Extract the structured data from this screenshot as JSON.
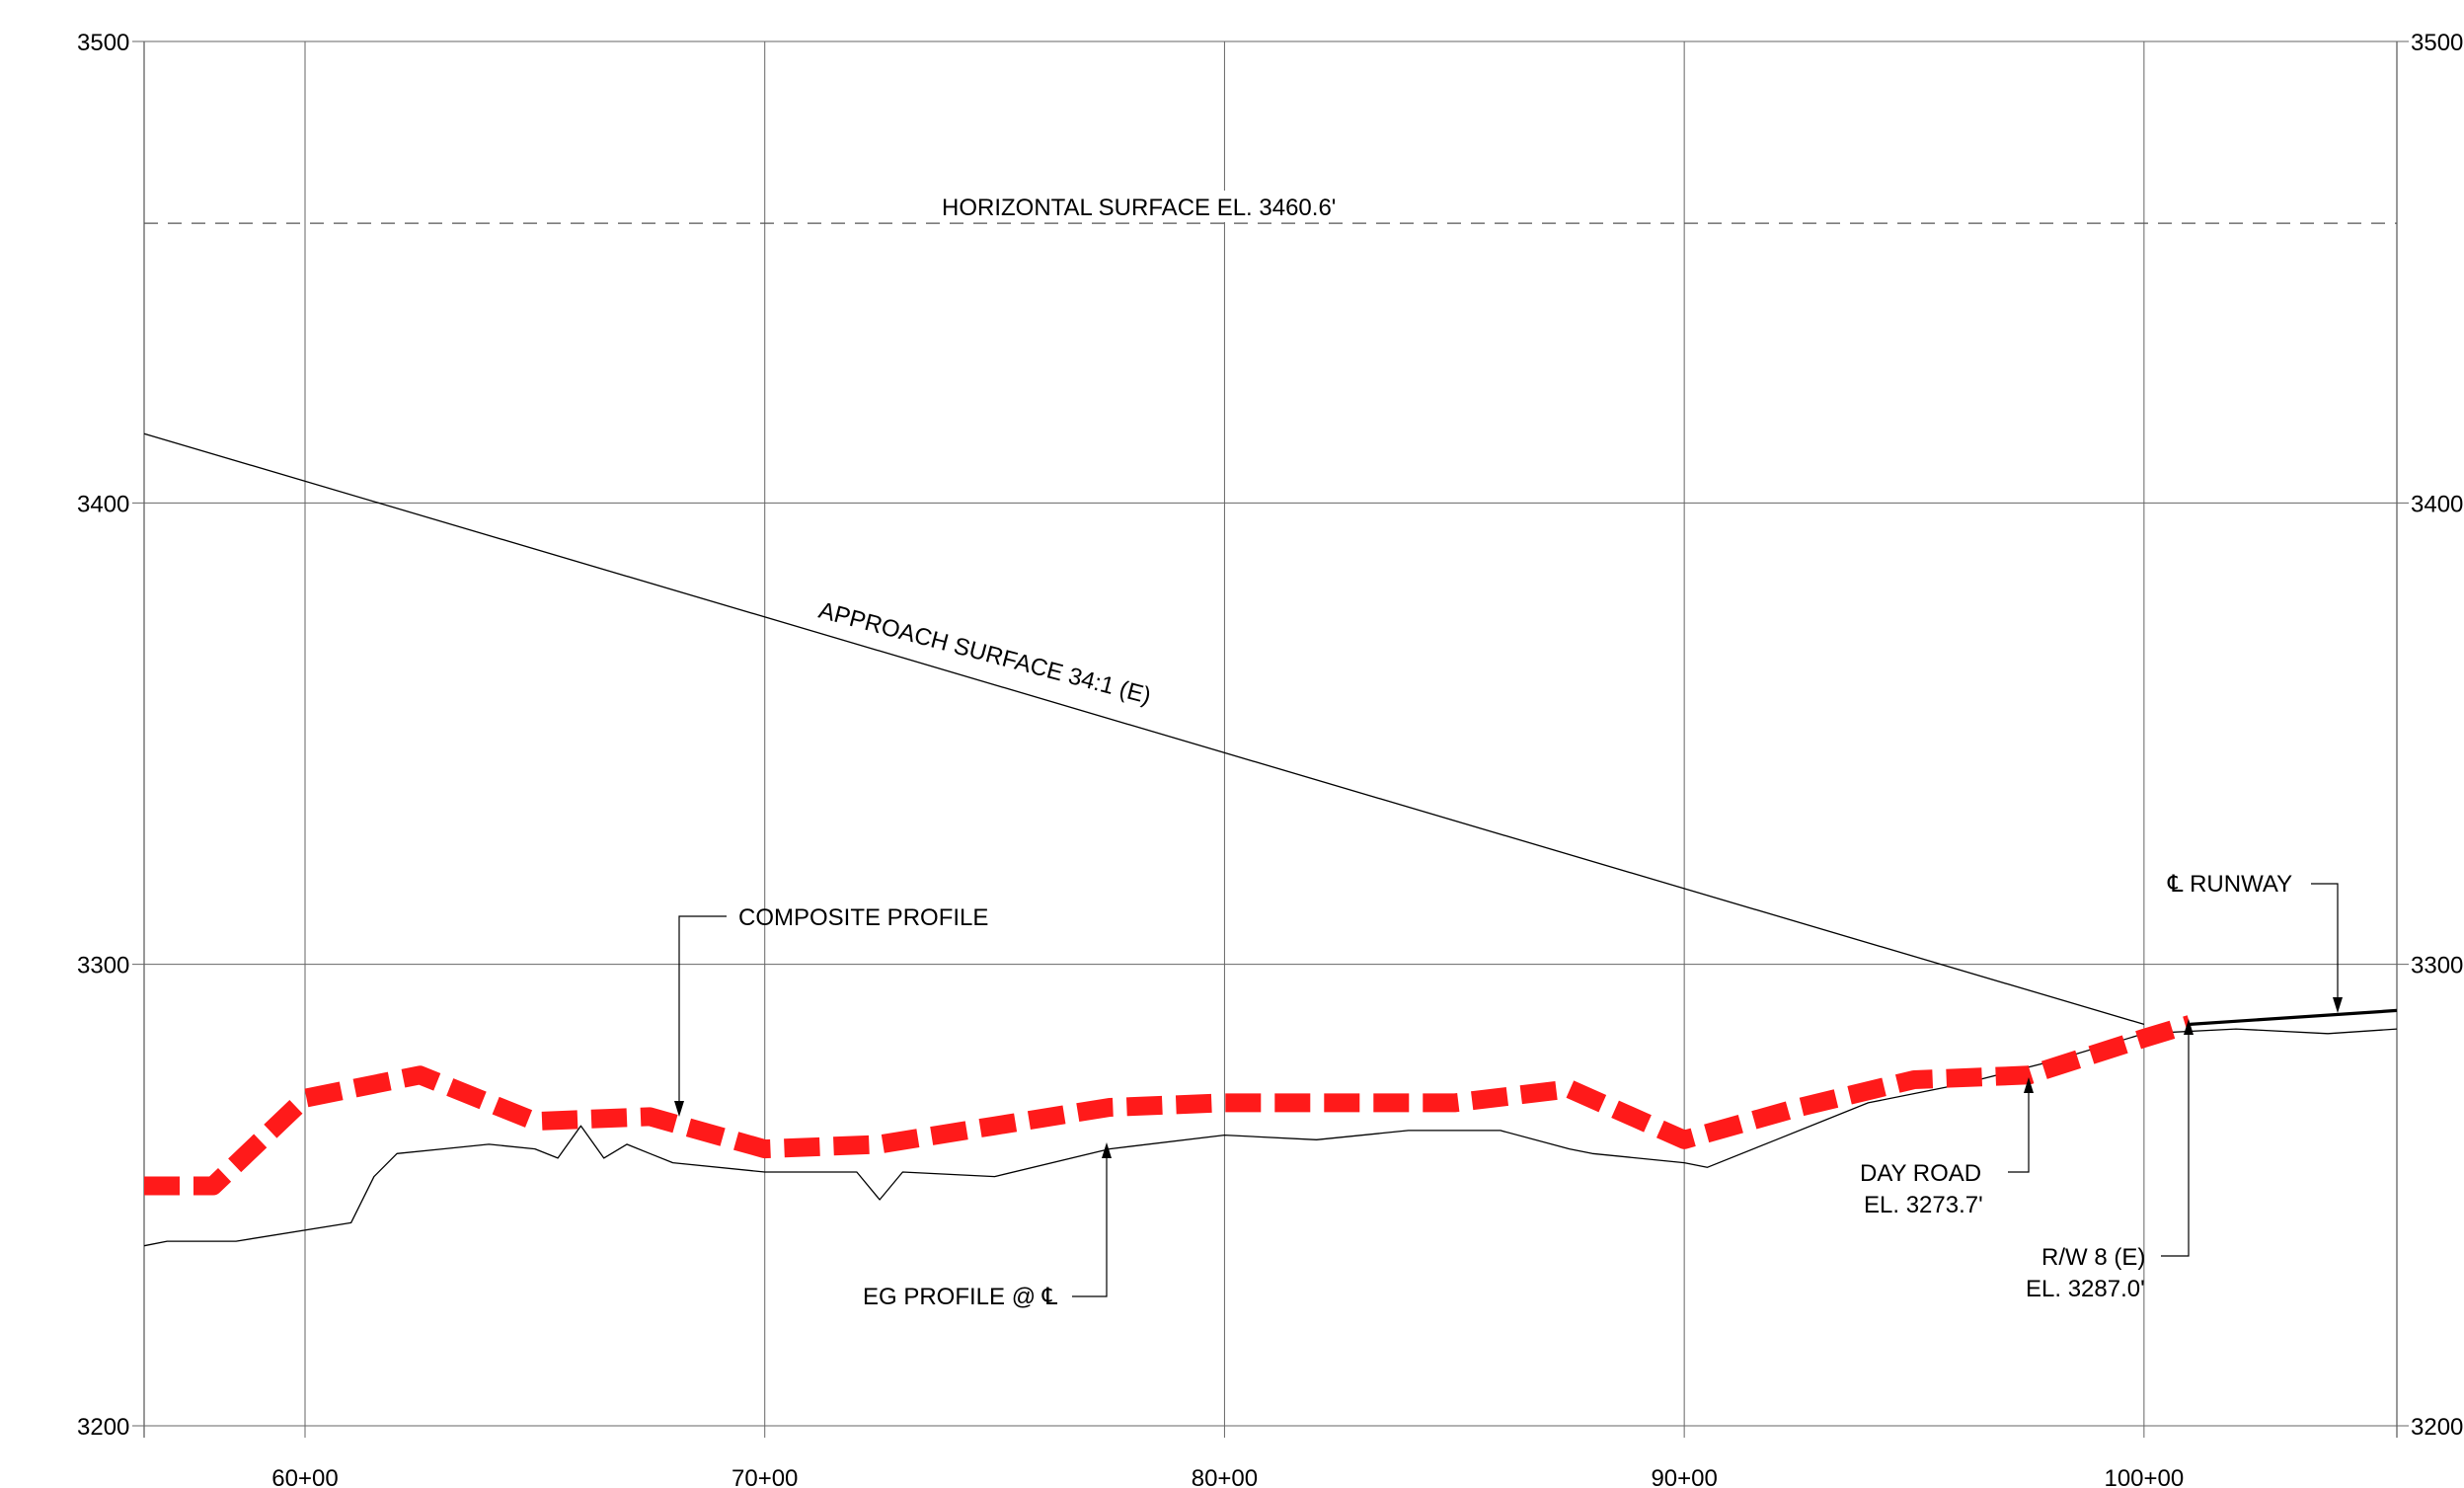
{
  "chart_data": {
    "type": "line",
    "title": "",
    "xlabel": "",
    "ylabel": "",
    "xlim": [
      5650,
      10550
    ],
    "ylim": [
      3200,
      3500
    ],
    "x_ticks": [
      6000,
      7000,
      8000,
      9000,
      10000
    ],
    "x_tick_labels": [
      "60+00",
      "70+00",
      "80+00",
      "90+00",
      "100+00"
    ],
    "y_ticks": [
      3200,
      3300,
      3400,
      3500
    ],
    "y_tick_labels": [
      "3200",
      "3300",
      "3400",
      "3500"
    ],
    "grid": true,
    "series": [
      {
        "id": "composite",
        "color": "#ff1a1a",
        "style": "dashed-thick",
        "x": [
          5650,
          5800,
          6000,
          6250,
          6500,
          6750,
          7000,
          7250,
          7500,
          7750,
          8000,
          8250,
          8500,
          8750,
          9000,
          9250,
          9500,
          9750,
          10000,
          10100
        ],
        "y": [
          3252,
          3252,
          3271,
          3276,
          3266,
          3267,
          3260,
          3261,
          3265,
          3269,
          3270,
          3270,
          3270,
          3273,
          3262,
          3269,
          3275,
          3276,
          3284,
          3287
        ]
      },
      {
        "id": "eg",
        "color": "#000000",
        "style": "thin",
        "x": [
          5650,
          5700,
          5850,
          6100,
          6150,
          6200,
          6300,
          6400,
          6500,
          6550,
          6600,
          6650,
          6700,
          6750,
          6800,
          7000,
          7200,
          7250,
          7300,
          7500,
          7750,
          8000,
          8200,
          8400,
          8600,
          8750,
          8800,
          9000,
          9050,
          9200,
          9400,
          9600,
          9800,
          10000,
          10200,
          10400,
          10550
        ],
        "y": [
          3239,
          3240,
          3240,
          3244,
          3254,
          3259,
          3260,
          3261,
          3260,
          3258,
          3265,
          3258,
          3261,
          3259,
          3257,
          3255,
          3255,
          3249,
          3255,
          3254,
          3260,
          3263,
          3262,
          3264,
          3264,
          3260,
          3259,
          3257,
          3256,
          3262,
          3270,
          3274,
          3279,
          3285,
          3286,
          3285,
          3286
        ]
      },
      {
        "id": "runway",
        "color": "#000000",
        "style": "thick",
        "x": [
          10100,
          10550
        ],
        "y": [
          3287,
          3290
        ]
      },
      {
        "id": "approach",
        "color": "#000000",
        "style": "thin",
        "x": [
          5650,
          10000
        ],
        "y": [
          3415,
          3287
        ]
      },
      {
        "id": "horizontal",
        "color": "#555555",
        "style": "dashed-thin",
        "x": [
          5650,
          10550
        ],
        "y": [
          3460.6,
          3460.6
        ]
      }
    ],
    "annotations": {
      "horizontal_surface": "HORIZONTAL SURFACE EL. 3460.6'",
      "approach_surface": "APPROACH SURFACE 34:1 (E)",
      "composite_profile": "COMPOSITE PROFILE",
      "eg_profile": "EG PROFILE @ ℄",
      "runway_cl": "℄ RUNWAY",
      "day_road_1": "DAY ROAD",
      "day_road_2": "EL. 3273.7'",
      "rw_1": "R/W 8 (E)",
      "rw_2": "EL. 3287.0'"
    }
  }
}
